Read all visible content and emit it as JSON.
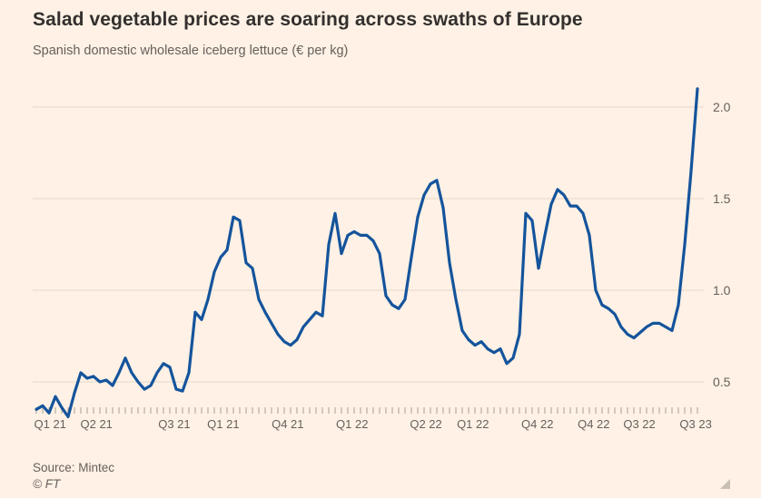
{
  "header": {
    "title": "Salad vegetable prices are soaring across swaths of Europe",
    "subtitle": "Spanish domestic wholesale iceberg lettuce (€ per kg)"
  },
  "footer": {
    "source": "Source: Mintec",
    "credit": "© FT"
  },
  "colors": {
    "background": "#FFF1E5",
    "line": "#14549C",
    "grid": "#E6D7C8",
    "axis_tick": "#A99F93",
    "text_primary": "#33302E",
    "text_secondary": "#66605C"
  },
  "icons": {
    "resize_handle": "resize-handle-icon"
  },
  "chart_data": {
    "type": "line",
    "title": "Salad vegetable prices are soaring across swaths of Europe",
    "subtitle": "Spanish domestic wholesale iceberg lettuce (€ per kg)",
    "ylabel": "€ per kg",
    "xlabel": "",
    "ylim": [
      0.3,
      2.15
    ],
    "grid": true,
    "legend": "none",
    "series_name": "Spanish domestic wholesale iceberg lettuce price",
    "y_ticks": [
      {
        "label": "2.0",
        "value": 2.0
      },
      {
        "label": "1.5",
        "value": 1.5
      },
      {
        "label": "1.0",
        "value": 1.0
      },
      {
        "label": "0.5",
        "value": 0.5
      }
    ],
    "x_ticks": [
      {
        "label": "Q1 21",
        "pos": 0.026
      },
      {
        "label": "Q2 21",
        "pos": 0.095
      },
      {
        "label": "Q3 21",
        "pos": 0.211
      },
      {
        "label": "Q1 21",
        "pos": 0.284
      },
      {
        "label": "Q4 21",
        "pos": 0.38
      },
      {
        "label": "Q1 22",
        "pos": 0.476
      },
      {
        "label": "Q2 22",
        "pos": 0.586
      },
      {
        "label": "Q1 22",
        "pos": 0.656
      },
      {
        "label": "Q4 22",
        "pos": 0.752
      },
      {
        "label": "Q4 22",
        "pos": 0.836
      },
      {
        "label": "Q3 22",
        "pos": 0.904
      },
      {
        "label": "Q3 23",
        "pos": 0.988
      }
    ],
    "values": [
      0.35,
      0.37,
      0.33,
      0.42,
      0.36,
      0.31,
      0.44,
      0.55,
      0.52,
      0.53,
      0.5,
      0.51,
      0.48,
      0.55,
      0.63,
      0.55,
      0.5,
      0.46,
      0.48,
      0.55,
      0.6,
      0.58,
      0.46,
      0.45,
      0.55,
      0.88,
      0.84,
      0.95,
      1.1,
      1.18,
      1.22,
      1.4,
      1.38,
      1.15,
      1.12,
      0.95,
      0.88,
      0.82,
      0.76,
      0.72,
      0.7,
      0.73,
      0.8,
      0.84,
      0.88,
      0.86,
      1.25,
      1.42,
      1.2,
      1.3,
      1.32,
      1.3,
      1.3,
      1.27,
      1.2,
      0.97,
      0.92,
      0.9,
      0.95,
      1.18,
      1.4,
      1.52,
      1.58,
      1.6,
      1.45,
      1.15,
      0.95,
      0.78,
      0.73,
      0.7,
      0.72,
      0.68,
      0.66,
      0.68,
      0.6,
      0.63,
      0.76,
      1.42,
      1.38,
      1.12,
      1.3,
      1.47,
      1.55,
      1.52,
      1.46,
      1.46,
      1.42,
      1.3,
      1.0,
      0.92,
      0.9,
      0.87,
      0.8,
      0.76,
      0.74,
      0.77,
      0.8,
      0.82,
      0.82,
      0.8,
      0.78,
      0.92,
      1.25,
      1.65,
      2.1
    ]
  }
}
